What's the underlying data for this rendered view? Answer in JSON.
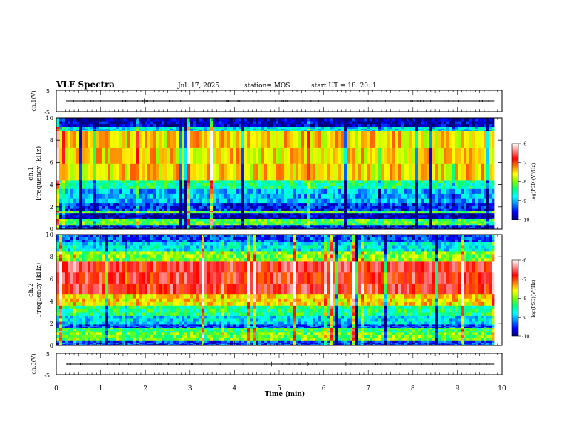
{
  "header": {
    "title": "VLF Spectra",
    "date": "Jul. 17, 2025",
    "station": "station= MOS",
    "start_time": "start UT = 18: 20: 1"
  },
  "chart_data": [
    {
      "type": "line",
      "name": "channel-1-voltage",
      "ylabel": "ch.1(V)",
      "ylim": [
        -5,
        5
      ],
      "yticks": [
        "5",
        "-5"
      ],
      "baseline_value": 0
    },
    {
      "type": "heatmap",
      "name": "channel-1-spectrogram",
      "ylabel_top": "ch.1",
      "ylabel": "Frequency (kHz)",
      "ylim": [
        0,
        10
      ],
      "yticks": [
        "0",
        "2",
        "4",
        "6",
        "8",
        "10"
      ],
      "bands_khz": [
        {
          "f0": 9.2,
          "f1": 10,
          "level": 0.05
        },
        {
          "f0": 8.8,
          "f1": 9.2,
          "level": 0.3
        },
        {
          "f0": 4.4,
          "f1": 8.8,
          "level": 0.62
        },
        {
          "f0": 3.6,
          "f1": 4.4,
          "level": 0.38
        },
        {
          "f0": 2.3,
          "f1": 3.6,
          "level": 0.25
        },
        {
          "f0": 1.6,
          "f1": 2.3,
          "level": 0.12
        },
        {
          "f0": 1.4,
          "f1": 1.6,
          "level": 0.45
        },
        {
          "f0": 0.9,
          "f1": 1.4,
          "level": 0.05
        },
        {
          "f0": 0.3,
          "f1": 0.9,
          "level": 0.45
        },
        {
          "f0": 0,
          "f1": 0.3,
          "level": 0.1
        }
      ],
      "colorbar": {
        "label": "log(PSD)(V²/Hz)",
        "ticks": [
          "-6",
          "-7",
          "-8",
          "-9",
          "-10"
        ],
        "range": [
          -10,
          -6
        ]
      }
    },
    {
      "type": "heatmap",
      "name": "channel-2-spectrogram",
      "ylabel_top": "ch.2",
      "ylabel": "Frequency (kHz)",
      "ylim": [
        0,
        10
      ],
      "yticks": [
        "0",
        "2",
        "4",
        "6",
        "8",
        "10"
      ],
      "bands_khz": [
        {
          "f0": 9.3,
          "f1": 10,
          "level": 0.15
        },
        {
          "f0": 8.5,
          "f1": 9.3,
          "level": 0.3
        },
        {
          "f0": 7.6,
          "f1": 8.5,
          "level": 0.5
        },
        {
          "f0": 4.6,
          "f1": 7.6,
          "level": 0.82
        },
        {
          "f0": 3.6,
          "f1": 4.6,
          "level": 0.62
        },
        {
          "f0": 2.7,
          "f1": 3.6,
          "level": 0.4
        },
        {
          "f0": 1.9,
          "f1": 2.7,
          "level": 0.28
        },
        {
          "f0": 1.6,
          "f1": 1.9,
          "level": 0.15
        },
        {
          "f0": 1.2,
          "f1": 1.6,
          "level": 0.42
        },
        {
          "f0": 0.4,
          "f1": 1.2,
          "level": 0.48
        },
        {
          "f0": 0,
          "f1": 0.4,
          "level": 0.15
        }
      ],
      "colorbar": {
        "label": "log(PSD)(V²/Hz)",
        "ticks": [
          "-6",
          "-7",
          "-8",
          "-9",
          "-10"
        ],
        "range": [
          -10,
          -6
        ]
      }
    },
    {
      "type": "line",
      "name": "channel-3-voltage",
      "ylabel": "ch.3(V)",
      "ylim": [
        -5,
        5
      ],
      "yticks": [
        "5",
        "-5"
      ],
      "baseline_value": 0
    }
  ],
  "xaxis": {
    "label": "Time (min)",
    "xlim": [
      0,
      10
    ],
    "ticks": [
      "0",
      "1",
      "2",
      "3",
      "4",
      "5",
      "6",
      "7",
      "8",
      "9",
      "10"
    ],
    "data_end_min": 9.83
  },
  "colors": {
    "colormap": [
      "#00007f",
      "#0000ff",
      "#0080ff",
      "#00ffff",
      "#00ff80",
      "#80ff00",
      "#ffff00",
      "#ff8000",
      "#ff0000",
      "#ff8080",
      "#ffffff"
    ]
  }
}
